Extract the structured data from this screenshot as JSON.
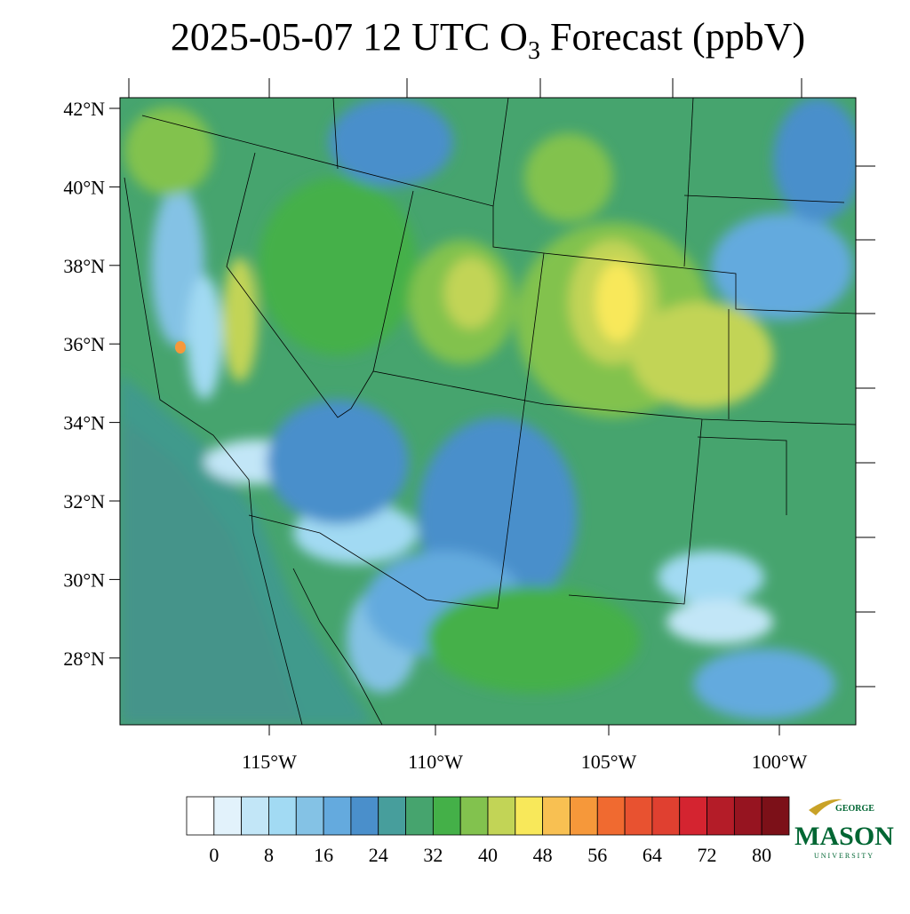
{
  "title": {
    "prefix": "2025-05-07 12 UTC O",
    "subscript": "3",
    "suffix": "Forecast (ppbV)"
  },
  "map": {
    "lat_labels": [
      "42°N",
      "40°N",
      "38°N",
      "36°N",
      "34°N",
      "32°N",
      "30°N",
      "28°N"
    ],
    "lon_labels": [
      "115°W",
      "110°W",
      "105°W",
      "100°W"
    ]
  },
  "colorbar": {
    "levels": [
      0,
      4,
      8,
      12,
      16,
      20,
      24,
      28,
      32,
      36,
      40,
      44,
      48,
      52,
      56,
      60,
      64,
      68,
      72,
      76,
      80
    ],
    "colors": [
      "#ffffff",
      "#e2f2fb",
      "#c2e6f7",
      "#a2daf3",
      "#84c2e5",
      "#64aade",
      "#4a8fcb",
      "#479e9c",
      "#46a46e",
      "#44b048",
      "#82c24e",
      "#c2d456",
      "#f8e85a",
      "#f8c052",
      "#f6983a",
      "#f06a30",
      "#e85230",
      "#e04030",
      "#d42430",
      "#b41c28",
      "#961420",
      "#7c1018"
    ],
    "ticks": [
      0,
      8,
      16,
      24,
      32,
      40,
      48,
      56,
      64,
      72,
      80
    ]
  },
  "logo": {
    "top": "GEORGE",
    "name": "MASON",
    "bottom": "UNIVERSITY"
  }
}
